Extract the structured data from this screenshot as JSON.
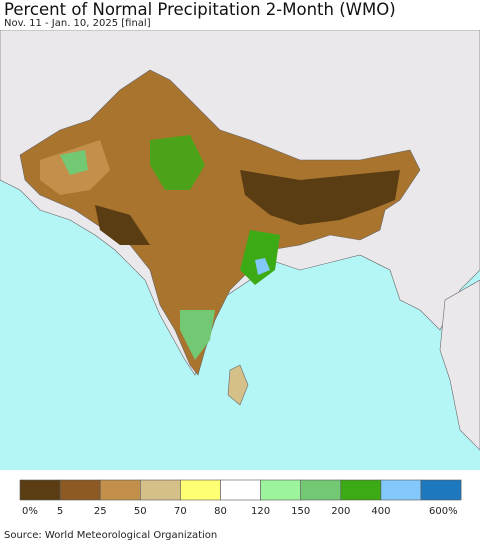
{
  "header": {
    "title": "Percent of Normal Precipitation 2-Month (WMO)",
    "subtitle": "Nov. 11 - Jan. 10, 2025 [final]"
  },
  "legend": {
    "items": [
      {
        "label": "0%",
        "color": "#5a3d13"
      },
      {
        "label": "5",
        "color": "#8e5a23"
      },
      {
        "label": "25",
        "color": "#c2904a"
      },
      {
        "label": "50",
        "color": "#d6c08a"
      },
      {
        "label": "70",
        "color": "#ffff73"
      },
      {
        "label": "80",
        "color": "#ffffff"
      },
      {
        "label": "120",
        "color": "#9cf59c"
      },
      {
        "label": "150",
        "color": "#73c873"
      },
      {
        "label": "200",
        "color": "#3caa14"
      },
      {
        "label": "400",
        "color": "#82c8fa"
      },
      {
        "label": "600%",
        "color": "#1e78be"
      }
    ]
  },
  "footer": {
    "source": "Source: World Meteorological Organization"
  }
}
